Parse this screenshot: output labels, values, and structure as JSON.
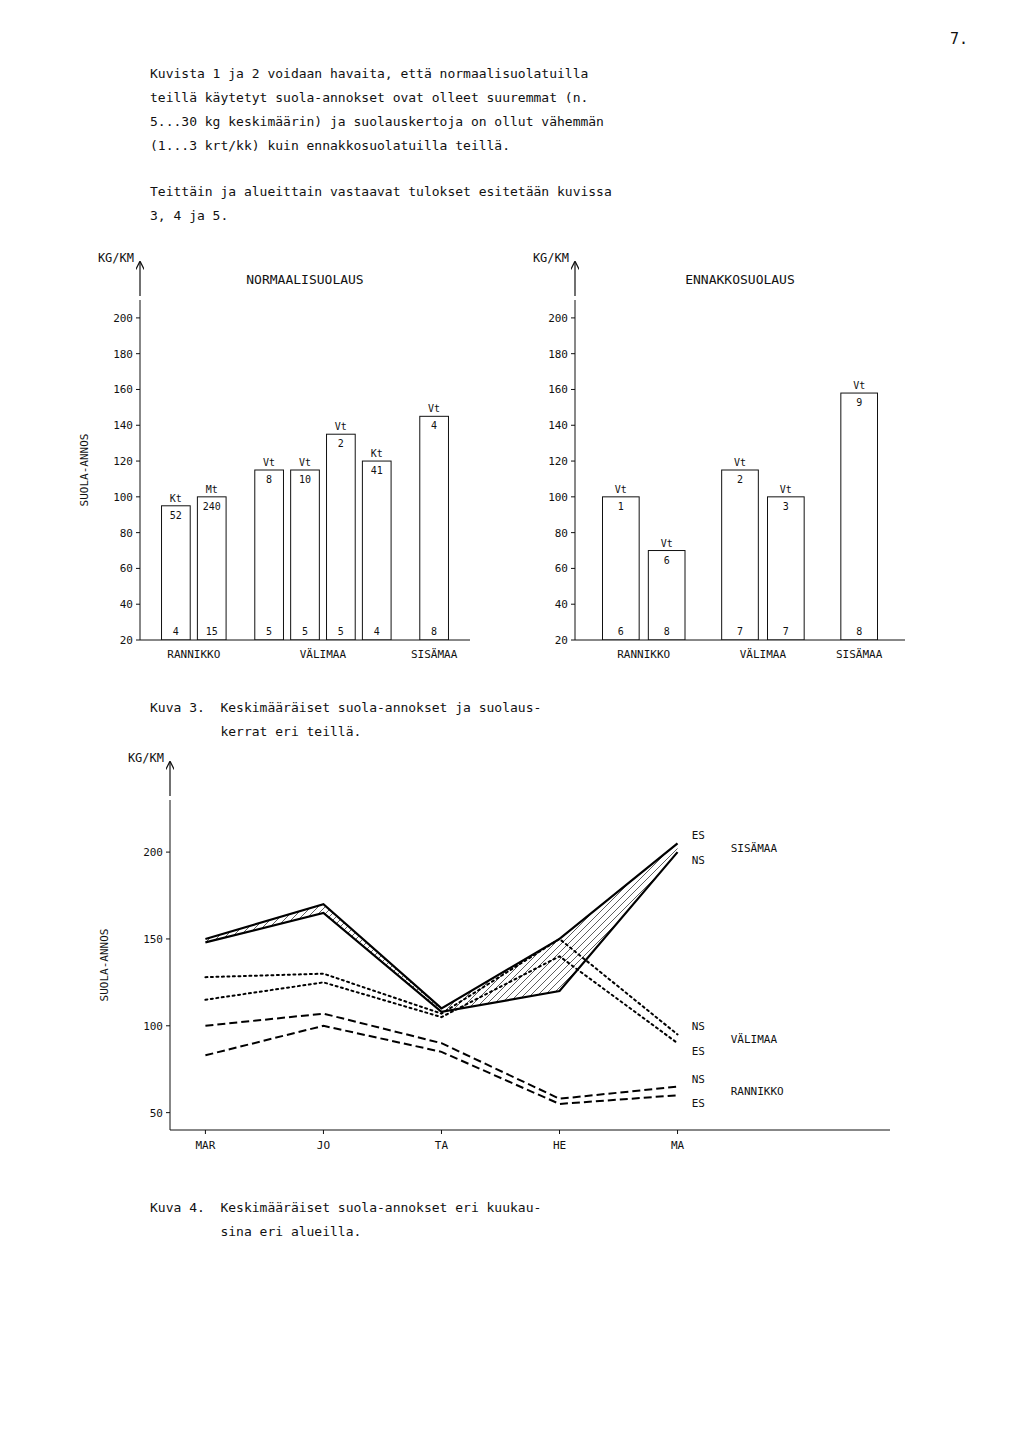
{
  "page_number": "7.",
  "intro_text_lines": [
    "Kuvista 1 ja 2 voidaan havaita, että normaalisuolatuilla",
    "teillä käytetyt suola-annokset ovat olleet suuremmat (n.",
    "5...30 kg keskimäärin) ja suolauskertoja on ollut vähemmän",
    "(1...3 krt/kk) kuin ennakkosuolatuilla teillä."
  ],
  "intro_text2_lines": [
    "Teittäin ja alueittain vastaavat tulokset esitetään kuvissa",
    "3, 4 ja 5."
  ],
  "caption3_lines": [
    "Kuva 3.  Keskimääräiset suola-annokset ja suolaus-",
    "         kerrat eri teillä."
  ],
  "caption4_lines": [
    "Kuva 4.  Keskimääräiset suola-annokset eri kuukau-",
    "         sina eri alueilla."
  ],
  "chart_data": [
    {
      "type": "bar",
      "title": "NORMAALISUOLAUS",
      "ylabel": "SUOLA-ANNOS",
      "y_unit": "KG/KM",
      "color": "#ffffff",
      "ylim": [
        20,
        210
      ],
      "yticks": [
        20,
        40,
        60,
        80,
        100,
        120,
        140,
        160,
        180,
        200
      ],
      "groups": [
        {
          "name": "RANNIKKO",
          "roads": [
            "Kt",
            "Mt"
          ],
          "road_numbers": [
            "52",
            "240"
          ],
          "values": [
            95,
            100
          ],
          "counts": [
            4,
            15
          ]
        },
        {
          "name": "VÄLIMAA",
          "roads": [
            "Vt",
            "Vt",
            "Vt",
            "Kt"
          ],
          "road_numbers": [
            "8",
            "10",
            "2",
            "41"
          ],
          "values": [
            115,
            115,
            135,
            120
          ],
          "counts": [
            5,
            5,
            5,
            4
          ]
        },
        {
          "name": "SISÄMAA",
          "roads": [
            "Vt"
          ],
          "road_numbers": [
            "4"
          ],
          "values": [
            145
          ],
          "counts": [
            8
          ]
        }
      ]
    },
    {
      "type": "bar",
      "title": "ENNAKKOSUOLAUS",
      "y_unit": "KG/KM",
      "color": "#ffffff",
      "ylim": [
        20,
        210
      ],
      "yticks": [
        20,
        40,
        60,
        80,
        100,
        120,
        140,
        160,
        180,
        200
      ],
      "groups": [
        {
          "name": "RANNIKKO",
          "roads": [
            "Vt",
            "Vt"
          ],
          "road_numbers": [
            "1",
            "6"
          ],
          "values": [
            100,
            70
          ],
          "counts": [
            6,
            8
          ]
        },
        {
          "name": "VÄLIMAA",
          "roads": [
            "Vt",
            "Vt"
          ],
          "road_numbers": [
            "2",
            "3"
          ],
          "values": [
            115,
            100
          ],
          "counts": [
            7,
            7
          ]
        },
        {
          "name": "SISÄMAA",
          "roads": [
            "Vt"
          ],
          "road_numbers": [
            "9"
          ],
          "values": [
            158
          ],
          "counts": [
            8
          ]
        }
      ]
    },
    {
      "type": "line",
      "ylabel": "SUOLA-ANNOS",
      "y_unit": "KG/KM",
      "color": "#000000",
      "categories": [
        "MAR",
        "JO",
        "TA",
        "HE",
        "MA"
      ],
      "ylim": [
        40,
        230
      ],
      "yticks": [
        50,
        100,
        150,
        200
      ],
      "regions": [
        {
          "name": "SISÄMAA",
          "type": "band",
          "line_style": "solid",
          "series": [
            {
              "name": "ES",
              "values": [
                150,
                170,
                110,
                150,
                205
              ]
            },
            {
              "name": "NS",
              "values": [
                148,
                165,
                108,
                120,
                200
              ]
            }
          ]
        },
        {
          "name": "VÄLIMAA",
          "type": "line",
          "line_style": "dotted",
          "series": [
            {
              "name": "NS",
              "values": [
                128,
                130,
                107,
                150,
                95
              ]
            },
            {
              "name": "ES",
              "values": [
                115,
                125,
                105,
                140,
                90
              ]
            }
          ]
        },
        {
          "name": "RANNIKKO",
          "type": "line",
          "line_style": "dashed",
          "series": [
            {
              "name": "NS",
              "values": [
                100,
                107,
                90,
                58,
                65
              ]
            },
            {
              "name": "ES",
              "values": [
                83,
                100,
                85,
                55,
                60
              ]
            }
          ]
        }
      ]
    }
  ]
}
